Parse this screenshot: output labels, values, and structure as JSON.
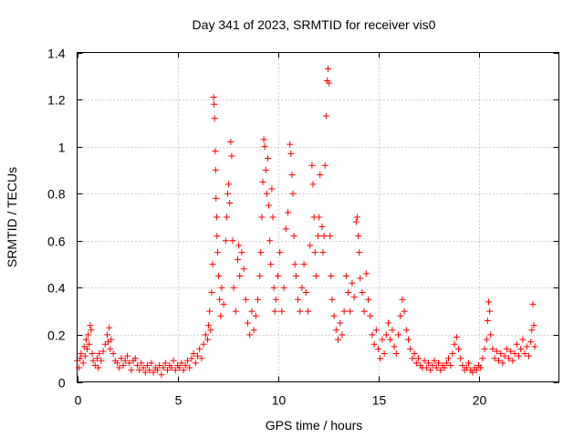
{
  "chart_data": {
    "type": "scatter",
    "title": "Day 341 of 2023, SRMTID for receiver vis0",
    "xlabel": "GPS time / hours",
    "ylabel": "SRMTID / TECUs",
    "xlim": [
      0,
      24
    ],
    "ylim": [
      0,
      1.4
    ],
    "xticks": [
      0,
      5,
      10,
      15,
      20
    ],
    "xtick_labels": [
      "0",
      "5",
      "10",
      "15",
      "20"
    ],
    "yticks": [
      0,
      0.2,
      0.4,
      0.6,
      0.8,
      1.0,
      1.2,
      1.4
    ],
    "ytick_labels": [
      "0",
      "0.2",
      "0.4",
      "0.6",
      "0.8",
      "1",
      "1.2",
      "1.4"
    ],
    "grid": true,
    "marker": "plus",
    "color": "#ff0000",
    "series": [
      {
        "name": "SRMTID",
        "points": [
          [
            0.0,
            0.09
          ],
          [
            0.1,
            0.06
          ],
          [
            0.15,
            0.1
          ],
          [
            0.2,
            0.12
          ],
          [
            0.3,
            0.08
          ],
          [
            0.35,
            0.15
          ],
          [
            0.4,
            0.11
          ],
          [
            0.45,
            0.18
          ],
          [
            0.5,
            0.14
          ],
          [
            0.55,
            0.2
          ],
          [
            0.6,
            0.16
          ],
          [
            0.65,
            0.24
          ],
          [
            0.7,
            0.22
          ],
          [
            0.75,
            0.12
          ],
          [
            0.8,
            0.09
          ],
          [
            0.9,
            0.07
          ],
          [
            1.0,
            0.1
          ],
          [
            1.05,
            0.06
          ],
          [
            1.1,
            0.12
          ],
          [
            1.2,
            0.09
          ],
          [
            1.3,
            0.13
          ],
          [
            1.4,
            0.16
          ],
          [
            1.5,
            0.2
          ],
          [
            1.55,
            0.17
          ],
          [
            1.6,
            0.23
          ],
          [
            1.65,
            0.14
          ],
          [
            1.7,
            0.18
          ],
          [
            1.8,
            0.12
          ],
          [
            1.9,
            0.09
          ],
          [
            2.0,
            0.08
          ],
          [
            2.1,
            0.06
          ],
          [
            2.2,
            0.1
          ],
          [
            2.3,
            0.07
          ],
          [
            2.4,
            0.09
          ],
          [
            2.5,
            0.11
          ],
          [
            2.6,
            0.08
          ],
          [
            2.7,
            0.05
          ],
          [
            2.8,
            0.09
          ],
          [
            2.9,
            0.1
          ],
          [
            3.0,
            0.07
          ],
          [
            3.1,
            0.05
          ],
          [
            3.2,
            0.08
          ],
          [
            3.3,
            0.06
          ],
          [
            3.4,
            0.04
          ],
          [
            3.5,
            0.07
          ],
          [
            3.6,
            0.05
          ],
          [
            3.7,
            0.08
          ],
          [
            3.8,
            0.04
          ],
          [
            3.9,
            0.06
          ],
          [
            4.0,
            0.05
          ],
          [
            4.1,
            0.07
          ],
          [
            4.2,
            0.03
          ],
          [
            4.3,
            0.06
          ],
          [
            4.4,
            0.08
          ],
          [
            4.5,
            0.05
          ],
          [
            4.6,
            0.07
          ],
          [
            4.7,
            0.06
          ],
          [
            4.8,
            0.09
          ],
          [
            4.9,
            0.05
          ],
          [
            5.0,
            0.07
          ],
          [
            5.1,
            0.06
          ],
          [
            5.2,
            0.08
          ],
          [
            5.3,
            0.05
          ],
          [
            5.4,
            0.07
          ],
          [
            5.5,
            0.09
          ],
          [
            5.6,
            0.06
          ],
          [
            5.7,
            0.1
          ],
          [
            5.8,
            0.12
          ],
          [
            5.9,
            0.08
          ],
          [
            6.0,
            0.11
          ],
          [
            6.1,
            0.14
          ],
          [
            6.2,
            0.1
          ],
          [
            6.3,
            0.16
          ],
          [
            6.4,
            0.2
          ],
          [
            6.5,
            0.18
          ],
          [
            6.55,
            0.24
          ],
          [
            6.6,
            0.3
          ],
          [
            6.65,
            0.22
          ],
          [
            6.7,
            0.38
          ],
          [
            6.75,
            0.5
          ],
          [
            6.8,
            1.21
          ],
          [
            6.82,
            1.18
          ],
          [
            6.85,
            1.12
          ],
          [
            6.88,
            0.98
          ],
          [
            6.9,
            0.9
          ],
          [
            6.92,
            0.78
          ],
          [
            6.95,
            0.7
          ],
          [
            6.97,
            0.62
          ],
          [
            7.0,
            0.55
          ],
          [
            7.05,
            0.45
          ],
          [
            7.1,
            0.35
          ],
          [
            7.15,
            0.28
          ],
          [
            7.2,
            0.4
          ],
          [
            7.3,
            0.33
          ],
          [
            7.4,
            0.6
          ],
          [
            7.45,
            0.7
          ],
          [
            7.5,
            0.8
          ],
          [
            7.55,
            0.84
          ],
          [
            7.6,
            0.76
          ],
          [
            7.65,
            1.02
          ],
          [
            7.7,
            0.96
          ],
          [
            7.75,
            0.6
          ],
          [
            7.8,
            0.4
          ],
          [
            7.9,
            0.3
          ],
          [
            8.0,
            0.52
          ],
          [
            8.05,
            0.58
          ],
          [
            8.1,
            0.45
          ],
          [
            8.2,
            0.55
          ],
          [
            8.3,
            0.48
          ],
          [
            8.4,
            0.35
          ],
          [
            8.5,
            0.25
          ],
          [
            8.6,
            0.2
          ],
          [
            8.7,
            0.3
          ],
          [
            8.8,
            0.22
          ],
          [
            8.9,
            0.28
          ],
          [
            9.0,
            0.35
          ],
          [
            9.1,
            0.45
          ],
          [
            9.15,
            0.55
          ],
          [
            9.2,
            0.7
          ],
          [
            9.25,
            0.85
          ],
          [
            9.3,
            1.03
          ],
          [
            9.35,
            1.0
          ],
          [
            9.4,
            0.9
          ],
          [
            9.45,
            0.8
          ],
          [
            9.5,
            0.95
          ],
          [
            9.55,
            0.75
          ],
          [
            9.6,
            0.6
          ],
          [
            9.65,
            0.5
          ],
          [
            9.7,
            0.82
          ],
          [
            9.75,
            0.7
          ],
          [
            9.8,
            0.4
          ],
          [
            9.85,
            0.3
          ],
          [
            9.9,
            0.35
          ],
          [
            10.0,
            0.45
          ],
          [
            10.1,
            0.55
          ],
          [
            10.2,
            0.3
          ],
          [
            10.3,
            0.4
          ],
          [
            10.4,
            0.65
          ],
          [
            10.5,
            0.72
          ],
          [
            10.6,
            1.01
          ],
          [
            10.65,
            0.97
          ],
          [
            10.7,
            0.88
          ],
          [
            10.75,
            0.8
          ],
          [
            10.8,
            0.62
          ],
          [
            10.85,
            0.5
          ],
          [
            10.9,
            0.45
          ],
          [
            11.0,
            0.35
          ],
          [
            11.1,
            0.3
          ],
          [
            11.2,
            0.4
          ],
          [
            11.3,
            0.5
          ],
          [
            11.4,
            0.38
          ],
          [
            11.5,
            0.3
          ],
          [
            11.6,
            0.58
          ],
          [
            11.7,
            0.92
          ],
          [
            11.75,
            0.84
          ],
          [
            11.8,
            0.7
          ],
          [
            11.85,
            0.55
          ],
          [
            11.9,
            0.45
          ],
          [
            12.0,
            0.62
          ],
          [
            12.05,
            0.7
          ],
          [
            12.1,
            0.88
          ],
          [
            12.2,
            0.66
          ],
          [
            12.25,
            0.55
          ],
          [
            12.3,
            0.62
          ],
          [
            12.35,
            0.92
          ],
          [
            12.4,
            1.13
          ],
          [
            12.45,
            1.28
          ],
          [
            12.5,
            1.33
          ],
          [
            12.55,
            1.27
          ],
          [
            12.6,
            0.62
          ],
          [
            12.65,
            0.45
          ],
          [
            12.7,
            0.35
          ],
          [
            12.8,
            0.28
          ],
          [
            12.9,
            0.22
          ],
          [
            13.0,
            0.18
          ],
          [
            13.1,
            0.25
          ],
          [
            13.2,
            0.2
          ],
          [
            13.3,
            0.3
          ],
          [
            13.4,
            0.45
          ],
          [
            13.5,
            0.38
          ],
          [
            13.6,
            0.3
          ],
          [
            13.7,
            0.42
          ],
          [
            13.8,
            0.36
          ],
          [
            13.9,
            0.68
          ],
          [
            13.95,
            0.7
          ],
          [
            14.0,
            0.62
          ],
          [
            14.05,
            0.55
          ],
          [
            14.1,
            0.44
          ],
          [
            14.2,
            0.38
          ],
          [
            14.3,
            0.3
          ],
          [
            14.4,
            0.46
          ],
          [
            14.5,
            0.35
          ],
          [
            14.6,
            0.28
          ],
          [
            14.7,
            0.2
          ],
          [
            14.8,
            0.16
          ],
          [
            14.9,
            0.22
          ],
          [
            15.0,
            0.14
          ],
          [
            15.1,
            0.1
          ],
          [
            15.2,
            0.18
          ],
          [
            15.3,
            0.12
          ],
          [
            15.4,
            0.2
          ],
          [
            15.5,
            0.25
          ],
          [
            15.6,
            0.18
          ],
          [
            15.7,
            0.22
          ],
          [
            15.8,
            0.15
          ],
          [
            15.9,
            0.12
          ],
          [
            16.0,
            0.2
          ],
          [
            16.1,
            0.28
          ],
          [
            16.2,
            0.35
          ],
          [
            16.3,
            0.3
          ],
          [
            16.4,
            0.22
          ],
          [
            16.5,
            0.18
          ],
          [
            16.6,
            0.14
          ],
          [
            16.7,
            0.1
          ],
          [
            16.8,
            0.12
          ],
          [
            16.9,
            0.08
          ],
          [
            17.0,
            0.1
          ],
          [
            17.1,
            0.07
          ],
          [
            17.2,
            0.06
          ],
          [
            17.3,
            0.09
          ],
          [
            17.4,
            0.06
          ],
          [
            17.5,
            0.08
          ],
          [
            17.6,
            0.05
          ],
          [
            17.7,
            0.07
          ],
          [
            17.8,
            0.09
          ],
          [
            17.9,
            0.06
          ],
          [
            18.0,
            0.08
          ],
          [
            18.1,
            0.05
          ],
          [
            18.2,
            0.07
          ],
          [
            18.3,
            0.06
          ],
          [
            18.4,
            0.08
          ],
          [
            18.5,
            0.1
          ],
          [
            18.6,
            0.07
          ],
          [
            18.7,
            0.12
          ],
          [
            18.8,
            0.16
          ],
          [
            18.9,
            0.19
          ],
          [
            19.0,
            0.14
          ],
          [
            19.1,
            0.1
          ],
          [
            19.2,
            0.07
          ],
          [
            19.3,
            0.05
          ],
          [
            19.4,
            0.06
          ],
          [
            19.5,
            0.08
          ],
          [
            19.6,
            0.05
          ],
          [
            19.7,
            0.04
          ],
          [
            19.8,
            0.06
          ],
          [
            19.9,
            0.05
          ],
          [
            20.0,
            0.07
          ],
          [
            20.1,
            0.06
          ],
          [
            20.2,
            0.1
          ],
          [
            20.3,
            0.14
          ],
          [
            20.4,
            0.18
          ],
          [
            20.45,
            0.26
          ],
          [
            20.5,
            0.34
          ],
          [
            20.55,
            0.3
          ],
          [
            20.6,
            0.2
          ],
          [
            20.7,
            0.14
          ],
          [
            20.8,
            0.1
          ],
          [
            20.9,
            0.13
          ],
          [
            21.0,
            0.09
          ],
          [
            21.1,
            0.12
          ],
          [
            21.2,
            0.08
          ],
          [
            21.3,
            0.11
          ],
          [
            21.4,
            0.14
          ],
          [
            21.5,
            0.1
          ],
          [
            21.6,
            0.13
          ],
          [
            21.7,
            0.09
          ],
          [
            21.8,
            0.12
          ],
          [
            21.9,
            0.16
          ],
          [
            22.0,
            0.11
          ],
          [
            22.1,
            0.14
          ],
          [
            22.2,
            0.18
          ],
          [
            22.3,
            0.12
          ],
          [
            22.4,
            0.15
          ],
          [
            22.5,
            0.11
          ],
          [
            22.6,
            0.17
          ],
          [
            22.65,
            0.22
          ],
          [
            22.7,
            0.33
          ],
          [
            22.75,
            0.24
          ],
          [
            22.8,
            0.15
          ]
        ]
      }
    ]
  }
}
